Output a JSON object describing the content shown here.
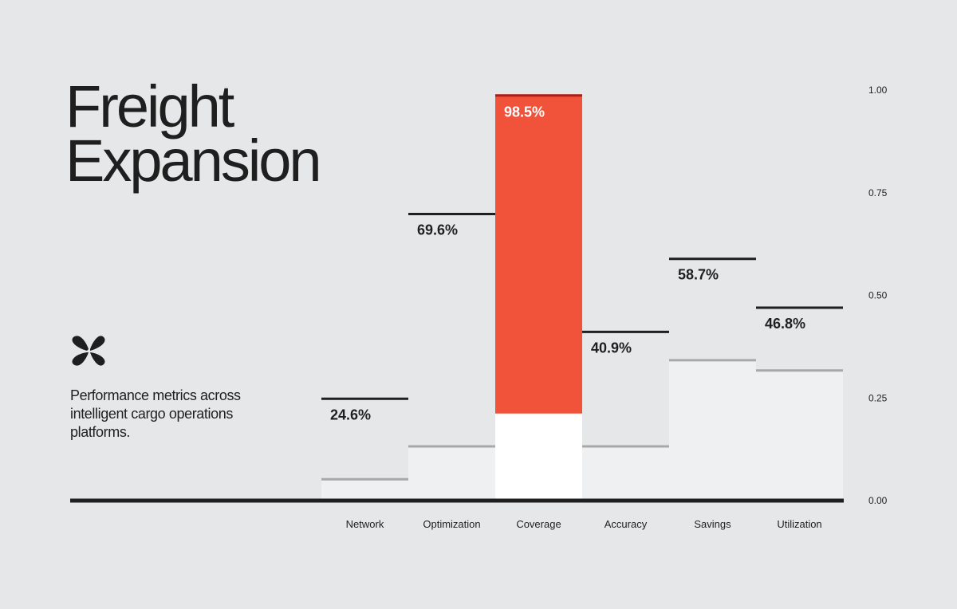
{
  "title_lines": [
    "Freight",
    "Expansion"
  ],
  "subtitle": "Performance metrics across intelligent cargo operations platforms.",
  "colors": {
    "background": "#e6e7e8",
    "highlight": "#f0533a",
    "highlight_top": "#b01d10",
    "ink": "#1f1f1f",
    "baseline_fill": "#eff0f1",
    "baseline_line": "#a8a8a8",
    "highlight_baseline": "#ffffff"
  },
  "chart_data": {
    "type": "bar",
    "categories": [
      "Network",
      "Optimization",
      "Coverage",
      "Accuracy",
      "Savings",
      "Utilization"
    ],
    "values": [
      0.246,
      0.696,
      0.985,
      0.409,
      0.587,
      0.468
    ],
    "value_labels": [
      "24.6%",
      "69.6%",
      "98.5%",
      "40.9%",
      "58.7%",
      "46.8%"
    ],
    "baseline_values": [
      0.05,
      0.13,
      0.21,
      0.13,
      0.34,
      0.315
    ],
    "highlight_index": 2,
    "y_ticks": [
      1.0,
      0.75,
      0.5,
      0.25,
      0.0
    ],
    "y_tick_labels": [
      "1.00",
      "0.75",
      "0.50",
      "0.25",
      "0.00"
    ],
    "ylim": [
      0,
      1
    ],
    "grid": false,
    "title": "",
    "xlabel": "",
    "ylabel": ""
  }
}
